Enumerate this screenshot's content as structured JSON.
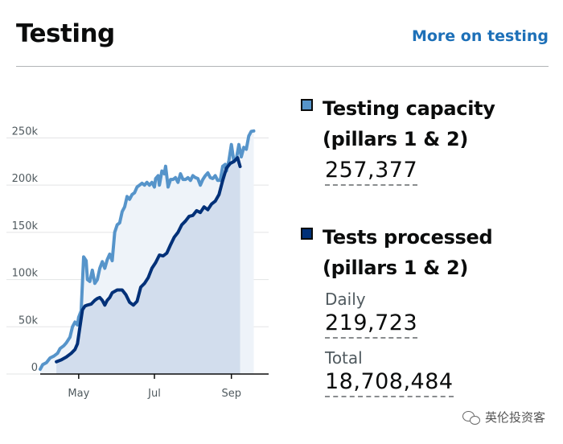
{
  "header": {
    "title": "Testing",
    "more_link": "More on testing"
  },
  "legend": {
    "capacity": {
      "title_line1": "Testing capacity",
      "title_line2": "(pillars 1 & 2)",
      "value": "257,377",
      "color": "#5694ca"
    },
    "processed": {
      "title_line1": "Tests processed",
      "title_line2": "(pillars 1 & 2)",
      "daily_label": "Daily",
      "daily_value": "219,723",
      "total_label": "Total",
      "total_value": "18,708,484",
      "color": "#003078"
    }
  },
  "watermark": {
    "text": "英伦投资客"
  },
  "chart_data": {
    "type": "line",
    "x_axis": {
      "ticks": [
        "May",
        "Jul",
        "Sep"
      ],
      "tick_days": [
        31,
        92,
        154
      ]
    },
    "y_axis": {
      "ticks": [
        0,
        50000,
        100000,
        150000,
        200000,
        250000
      ],
      "tick_labels": [
        "0",
        "50k",
        "100k",
        "150k",
        "200k",
        "250k"
      ],
      "ylim": [
        0,
        270000
      ]
    },
    "xlim_days": [
      0,
      184
    ],
    "series": [
      {
        "name": "Testing capacity",
        "color": "#5694ca",
        "points": [
          [
            0,
            5000
          ],
          [
            2,
            10000
          ],
          [
            5,
            12000
          ],
          [
            8,
            17000
          ],
          [
            11,
            19000
          ],
          [
            14,
            22000
          ],
          [
            16,
            27000
          ],
          [
            19,
            30000
          ],
          [
            21,
            33000
          ],
          [
            24,
            39000
          ],
          [
            26,
            50000
          ],
          [
            28,
            55000
          ],
          [
            30,
            52000
          ],
          [
            31,
            60000
          ],
          [
            33,
            67000
          ],
          [
            35,
            124000
          ],
          [
            37,
            120000
          ],
          [
            38,
            100000
          ],
          [
            40,
            98000
          ],
          [
            42,
            110000
          ],
          [
            44,
            96000
          ],
          [
            46,
            100000
          ],
          [
            48,
            112000
          ],
          [
            50,
            119000
          ],
          [
            52,
            112000
          ],
          [
            54,
            121000
          ],
          [
            56,
            127000
          ],
          [
            58,
            120000
          ],
          [
            60,
            150000
          ],
          [
            62,
            158000
          ],
          [
            64,
            160000
          ],
          [
            66,
            172000
          ],
          [
            68,
            177000
          ],
          [
            70,
            188000
          ],
          [
            72,
            185000
          ],
          [
            74,
            190000
          ],
          [
            76,
            192000
          ],
          [
            78,
            198000
          ],
          [
            80,
            200000
          ],
          [
            82,
            202000
          ],
          [
            84,
            200000
          ],
          [
            86,
            203000
          ],
          [
            88,
            200000
          ],
          [
            90,
            203000
          ],
          [
            92,
            198000
          ],
          [
            93,
            207000
          ],
          [
            95,
            210000
          ],
          [
            96,
            200000
          ],
          [
            98,
            215000
          ],
          [
            100,
            212000
          ],
          [
            101,
            220000
          ],
          [
            103,
            198000
          ],
          [
            105,
            206000
          ],
          [
            107,
            206000
          ],
          [
            109,
            208000
          ],
          [
            111,
            203000
          ],
          [
            113,
            212000
          ],
          [
            115,
            206000
          ],
          [
            117,
            206000
          ],
          [
            119,
            208000
          ],
          [
            121,
            205000
          ],
          [
            123,
            210000
          ],
          [
            125,
            208000
          ],
          [
            127,
            207000
          ],
          [
            129,
            200000
          ],
          [
            131,
            206000
          ],
          [
            133,
            210000
          ],
          [
            135,
            213000
          ],
          [
            137,
            208000
          ],
          [
            139,
            207000
          ],
          [
            141,
            210000
          ],
          [
            143,
            205000
          ],
          [
            145,
            205000
          ],
          [
            147,
            220000
          ],
          [
            149,
            222000
          ],
          [
            150,
            215000
          ],
          [
            152,
            226000
          ],
          [
            154,
            243000
          ],
          [
            156,
            225000
          ],
          [
            158,
            228000
          ],
          [
            160,
            243000
          ],
          [
            162,
            230000
          ],
          [
            164,
            240000
          ],
          [
            166,
            238000
          ],
          [
            168,
            252000
          ],
          [
            170,
            257000
          ],
          [
            172,
            257377
          ]
        ]
      },
      {
        "name": "Tests processed",
        "color": "#003078",
        "points": [
          [
            13,
            13000
          ],
          [
            17,
            15000
          ],
          [
            21,
            18000
          ],
          [
            25,
            22000
          ],
          [
            28,
            26000
          ],
          [
            30,
            32000
          ],
          [
            32,
            50000
          ],
          [
            34,
            68000
          ],
          [
            36,
            72000
          ],
          [
            38,
            73000
          ],
          [
            41,
            74000
          ],
          [
            44,
            78000
          ],
          [
            46,
            80000
          ],
          [
            48,
            81000
          ],
          [
            50,
            78000
          ],
          [
            52,
            73000
          ],
          [
            54,
            78000
          ],
          [
            56,
            81000
          ],
          [
            58,
            86000
          ],
          [
            62,
            89000
          ],
          [
            66,
            89000
          ],
          [
            69,
            84000
          ],
          [
            72,
            76000
          ],
          [
            75,
            73000
          ],
          [
            78,
            77000
          ],
          [
            81,
            92000
          ],
          [
            84,
            96000
          ],
          [
            87,
            102000
          ],
          [
            90,
            112000
          ],
          [
            93,
            118000
          ],
          [
            96,
            126000
          ],
          [
            99,
            125000
          ],
          [
            102,
            128000
          ],
          [
            105,
            137000
          ],
          [
            108,
            145000
          ],
          [
            111,
            150000
          ],
          [
            114,
            158000
          ],
          [
            117,
            162000
          ],
          [
            120,
            167000
          ],
          [
            123,
            168000
          ],
          [
            126,
            173000
          ],
          [
            129,
            171000
          ],
          [
            132,
            177000
          ],
          [
            135,
            174000
          ],
          [
            138,
            180000
          ],
          [
            141,
            183000
          ],
          [
            144,
            190000
          ],
          [
            147,
            205000
          ],
          [
            150,
            218000
          ],
          [
            153,
            223000
          ],
          [
            156,
            225000
          ],
          [
            159,
            229000
          ],
          [
            161,
            219723
          ]
        ]
      }
    ]
  }
}
